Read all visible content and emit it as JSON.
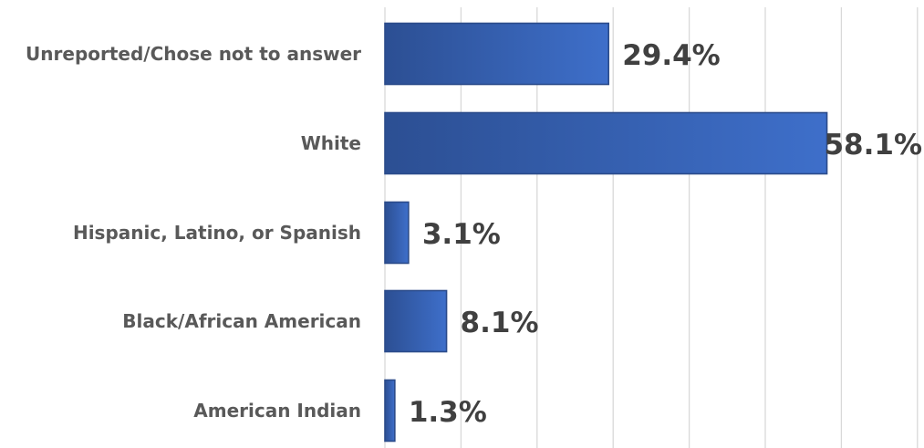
{
  "chart_data": {
    "type": "bar",
    "orientation": "horizontal",
    "categories": [
      "Unreported/Chose not to answer",
      "White",
      "Hispanic, Latino, or Spanish",
      "Black/African American",
      "American Indian"
    ],
    "values": [
      29.4,
      58.1,
      3.1,
      8.1,
      1.3
    ],
    "data_labels": [
      "29.4%",
      "58.1%",
      "3.1%",
      "8.1%",
      "1.3%"
    ],
    "value_unit": "%",
    "xlim": [
      0,
      70
    ],
    "grid_step": 10,
    "grid": true,
    "legend": "none",
    "axis_tick_labels_shown": false,
    "bar_gradient": [
      "#2c4f93",
      "#3e6fca"
    ],
    "bar_border_color": "#2b4b8a",
    "grid_color": "#d9d9d9",
    "category_label_color": "#595959",
    "value_label_color": "#404040"
  }
}
